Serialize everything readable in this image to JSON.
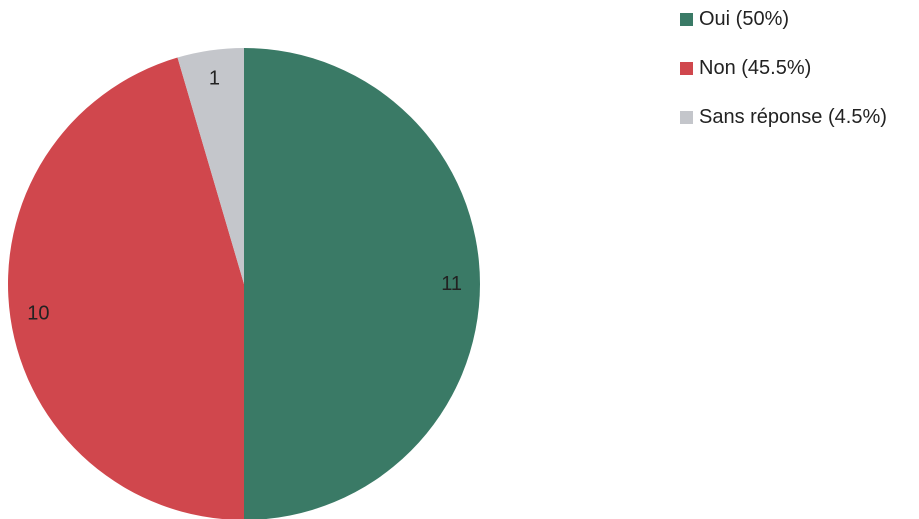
{
  "chart_data": {
    "type": "pie",
    "title": "",
    "start_angle_deg": 0,
    "direction": "clockwise",
    "slices": [
      {
        "label": "Oui (50%)",
        "value": 11,
        "data_label": "11",
        "color": "#3a7a66"
      },
      {
        "label": "Non (45.5%)",
        "value": 10,
        "data_label": "10",
        "color": "#d0474d"
      },
      {
        "label": "Sans réponse (4.5%)",
        "value": 1,
        "data_label": "1",
        "color": "#c4c6cb"
      }
    ],
    "legend_position": "right"
  }
}
